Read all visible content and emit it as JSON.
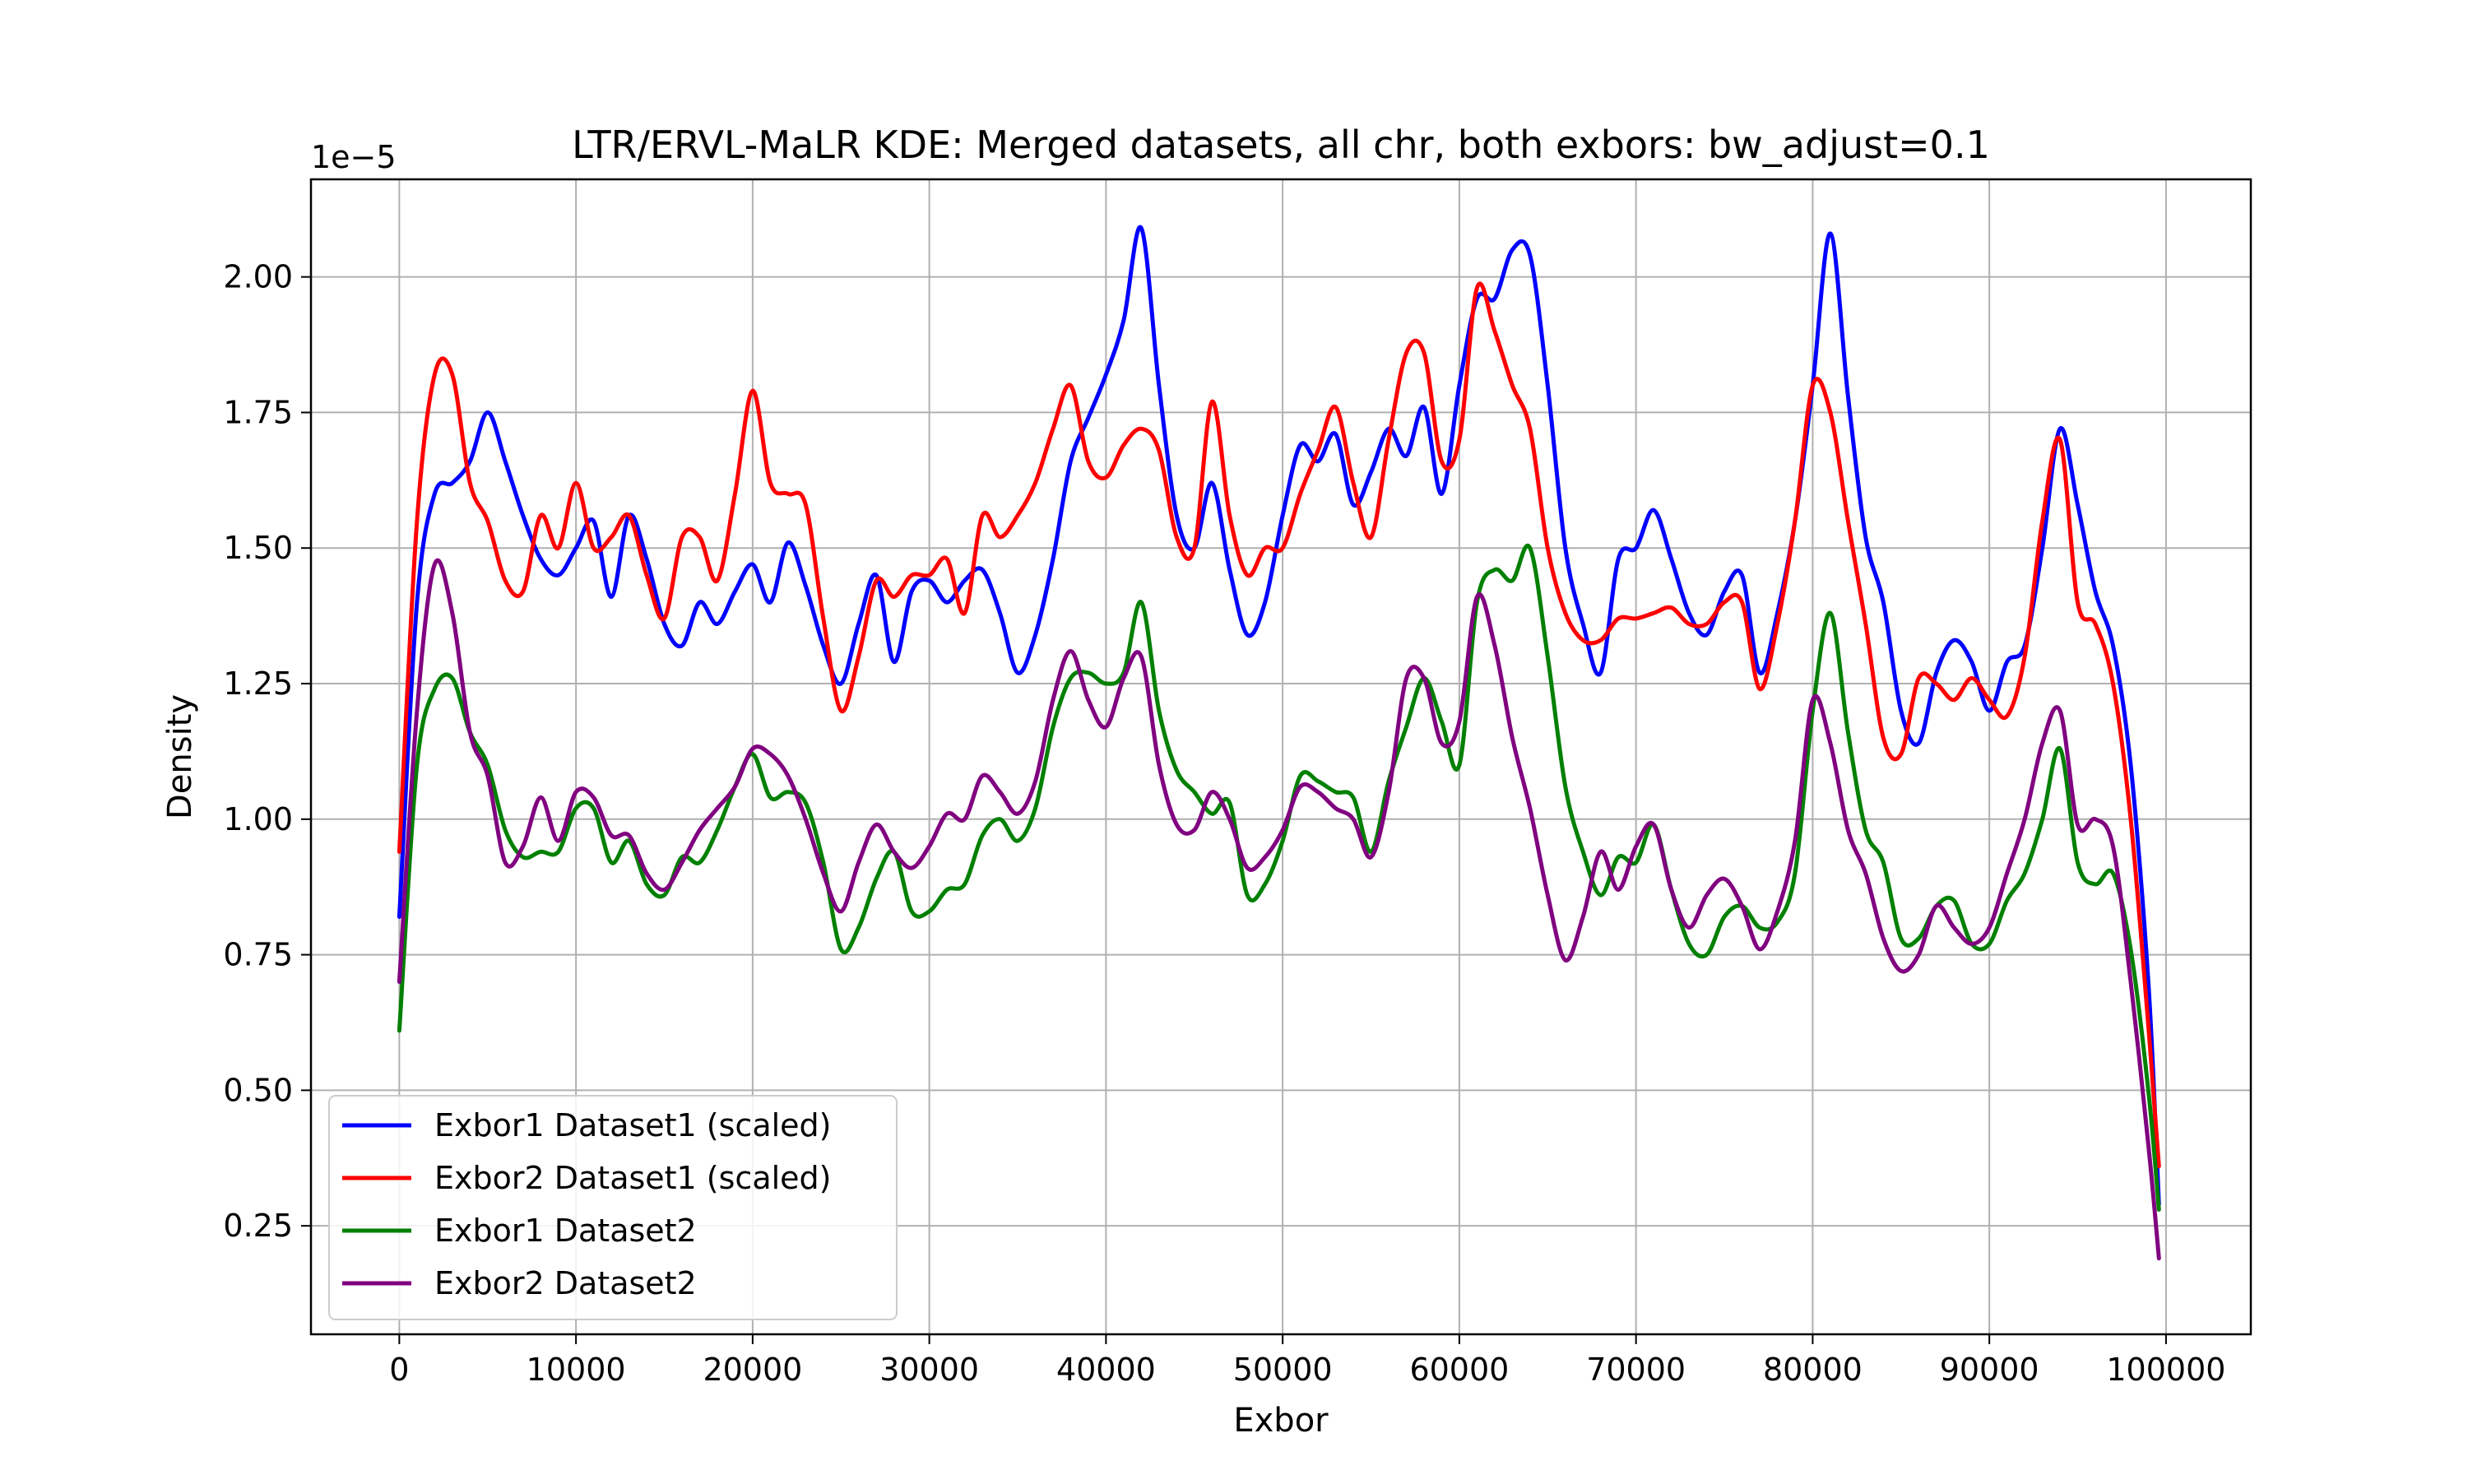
{
  "chart_data": {
    "type": "line",
    "title": "LTR/ERVL-MaLR KDE: Merged datasets, all chr, both exbors: bw_adjust=0.1",
    "xlabel": "Exbor",
    "ylabel": "Density",
    "y_offset_label": "1e−5",
    "xlim": [
      -5000,
      104800
    ],
    "ylim": [
      0.05,
      2.18
    ],
    "x_ticks": [
      0,
      10000,
      20000,
      30000,
      40000,
      50000,
      60000,
      70000,
      80000,
      90000,
      100000
    ],
    "x_tick_labels": [
      "0",
      "10000",
      "20000",
      "30000",
      "40000",
      "50000",
      "60000",
      "70000",
      "80000",
      "90000",
      "100000"
    ],
    "y_ticks": [
      0.25,
      0.5,
      0.75,
      1.0,
      1.25,
      1.5,
      1.75,
      2.0
    ],
    "y_tick_labels": [
      "0.25",
      "0.50",
      "0.75",
      "1.00",
      "1.25",
      "1.50",
      "1.75",
      "2.00"
    ],
    "grid": true,
    "legend_position": "bottom-left",
    "x": [
      0,
      1000,
      2000,
      3000,
      4000,
      5000,
      6000,
      7000,
      8000,
      9000,
      10000,
      11000,
      12000,
      13000,
      14000,
      15000,
      16000,
      17000,
      18000,
      19000,
      20000,
      21000,
      22000,
      23000,
      24000,
      25000,
      26000,
      27000,
      28000,
      29000,
      30000,
      31000,
      32000,
      33000,
      34000,
      35000,
      36000,
      37000,
      38000,
      39000,
      40000,
      41000,
      42000,
      43000,
      44000,
      45000,
      46000,
      47000,
      48000,
      49000,
      50000,
      51000,
      52000,
      53000,
      54000,
      55000,
      56000,
      57000,
      58000,
      59000,
      60000,
      61000,
      62000,
      63000,
      64000,
      65000,
      66000,
      67000,
      68000,
      69000,
      70000,
      71000,
      72000,
      73000,
      74000,
      75000,
      76000,
      77000,
      78000,
      79000,
      80000,
      81000,
      82000,
      83000,
      84000,
      85000,
      86000,
      87000,
      88000,
      89000,
      90000,
      91000,
      92000,
      93000,
      94000,
      95000,
      96000,
      97000,
      98000,
      99000,
      99600
    ],
    "series": [
      {
        "name": "Exbor1 Dataset1 (scaled)",
        "color": "#0000ff",
        "values": [
          0.82,
          1.4,
          1.6,
          1.62,
          1.66,
          1.75,
          1.66,
          1.56,
          1.48,
          1.45,
          1.5,
          1.55,
          1.41,
          1.56,
          1.48,
          1.36,
          1.32,
          1.4,
          1.36,
          1.42,
          1.47,
          1.4,
          1.51,
          1.43,
          1.32,
          1.25,
          1.36,
          1.45,
          1.29,
          1.42,
          1.44,
          1.4,
          1.44,
          1.46,
          1.38,
          1.27,
          1.34,
          1.48,
          1.66,
          1.74,
          1.82,
          1.92,
          2.09,
          1.8,
          1.56,
          1.5,
          1.62,
          1.46,
          1.34,
          1.4,
          1.56,
          1.69,
          1.66,
          1.71,
          1.58,
          1.64,
          1.72,
          1.67,
          1.76,
          1.6,
          1.8,
          1.96,
          1.96,
          2.05,
          2.04,
          1.8,
          1.5,
          1.36,
          1.27,
          1.48,
          1.5,
          1.57,
          1.48,
          1.38,
          1.34,
          1.42,
          1.45,
          1.27,
          1.38,
          1.55,
          1.8,
          2.08,
          1.78,
          1.52,
          1.4,
          1.2,
          1.14,
          1.27,
          1.33,
          1.29,
          1.2,
          1.29,
          1.32,
          1.5,
          1.72,
          1.58,
          1.42,
          1.32,
          1.1,
          0.7,
          0.29
        ]
      },
      {
        "name": "Exbor2 Dataset1 (scaled)",
        "color": "#ff0000",
        "values": [
          0.94,
          1.55,
          1.82,
          1.82,
          1.62,
          1.55,
          1.44,
          1.42,
          1.56,
          1.5,
          1.62,
          1.5,
          1.52,
          1.56,
          1.45,
          1.37,
          1.52,
          1.52,
          1.44,
          1.6,
          1.79,
          1.62,
          1.6,
          1.58,
          1.37,
          1.2,
          1.3,
          1.44,
          1.41,
          1.45,
          1.45,
          1.48,
          1.38,
          1.56,
          1.52,
          1.56,
          1.62,
          1.72,
          1.8,
          1.66,
          1.63,
          1.69,
          1.72,
          1.68,
          1.52,
          1.5,
          1.77,
          1.56,
          1.45,
          1.5,
          1.5,
          1.6,
          1.68,
          1.76,
          1.62,
          1.52,
          1.7,
          1.86,
          1.86,
          1.66,
          1.7,
          1.98,
          1.9,
          1.8,
          1.72,
          1.5,
          1.38,
          1.33,
          1.33,
          1.37,
          1.37,
          1.38,
          1.39,
          1.36,
          1.36,
          1.4,
          1.4,
          1.24,
          1.36,
          1.55,
          1.8,
          1.75,
          1.55,
          1.36,
          1.15,
          1.12,
          1.26,
          1.25,
          1.22,
          1.26,
          1.22,
          1.19,
          1.3,
          1.55,
          1.7,
          1.4,
          1.36,
          1.25,
          1.0,
          0.62,
          0.36
        ]
      },
      {
        "name": "Exbor1 Dataset2",
        "color": "#008000",
        "values": [
          0.61,
          1.1,
          1.24,
          1.26,
          1.16,
          1.1,
          0.98,
          0.93,
          0.94,
          0.94,
          1.02,
          1.02,
          0.92,
          0.96,
          0.88,
          0.86,
          0.93,
          0.92,
          0.98,
          1.06,
          1.12,
          1.04,
          1.05,
          1.03,
          0.92,
          0.76,
          0.8,
          0.89,
          0.94,
          0.83,
          0.83,
          0.87,
          0.88,
          0.97,
          1.0,
          0.96,
          1.02,
          1.17,
          1.26,
          1.27,
          1.25,
          1.27,
          1.4,
          1.2,
          1.09,
          1.05,
          1.01,
          1.03,
          0.86,
          0.88,
          0.96,
          1.08,
          1.07,
          1.05,
          1.04,
          0.94,
          1.07,
          1.17,
          1.26,
          1.18,
          1.1,
          1.4,
          1.46,
          1.44,
          1.5,
          1.3,
          1.06,
          0.94,
          0.86,
          0.93,
          0.92,
          0.99,
          0.87,
          0.77,
          0.75,
          0.82,
          0.84,
          0.8,
          0.81,
          0.9,
          1.2,
          1.38,
          1.16,
          0.98,
          0.92,
          0.78,
          0.78,
          0.84,
          0.85,
          0.77,
          0.77,
          0.85,
          0.9,
          1.0,
          1.13,
          0.92,
          0.88,
          0.9,
          0.76,
          0.5,
          0.28
        ]
      },
      {
        "name": "Exbor2 Dataset2",
        "color": "#800080",
        "values": [
          0.7,
          1.2,
          1.47,
          1.38,
          1.16,
          1.08,
          0.92,
          0.95,
          1.04,
          0.96,
          1.05,
          1.04,
          0.97,
          0.97,
          0.9,
          0.87,
          0.92,
          0.98,
          1.02,
          1.06,
          1.13,
          1.12,
          1.08,
          1.0,
          0.9,
          0.83,
          0.92,
          0.99,
          0.94,
          0.91,
          0.95,
          1.01,
          1.0,
          1.08,
          1.05,
          1.01,
          1.07,
          1.22,
          1.31,
          1.22,
          1.17,
          1.26,
          1.3,
          1.1,
          0.99,
          0.98,
          1.05,
          1.0,
          0.91,
          0.93,
          0.98,
          1.06,
          1.05,
          1.02,
          1.0,
          0.93,
          1.05,
          1.26,
          1.26,
          1.14,
          1.18,
          1.41,
          1.32,
          1.15,
          1.02,
          0.86,
          0.74,
          0.82,
          0.94,
          0.87,
          0.95,
          0.99,
          0.87,
          0.8,
          0.86,
          0.89,
          0.84,
          0.76,
          0.83,
          0.96,
          1.22,
          1.14,
          0.98,
          0.9,
          0.78,
          0.72,
          0.75,
          0.84,
          0.8,
          0.77,
          0.8,
          0.9,
          1.0,
          1.14,
          1.2,
          0.99,
          1.0,
          0.95,
          0.7,
          0.4,
          0.19
        ]
      }
    ]
  }
}
